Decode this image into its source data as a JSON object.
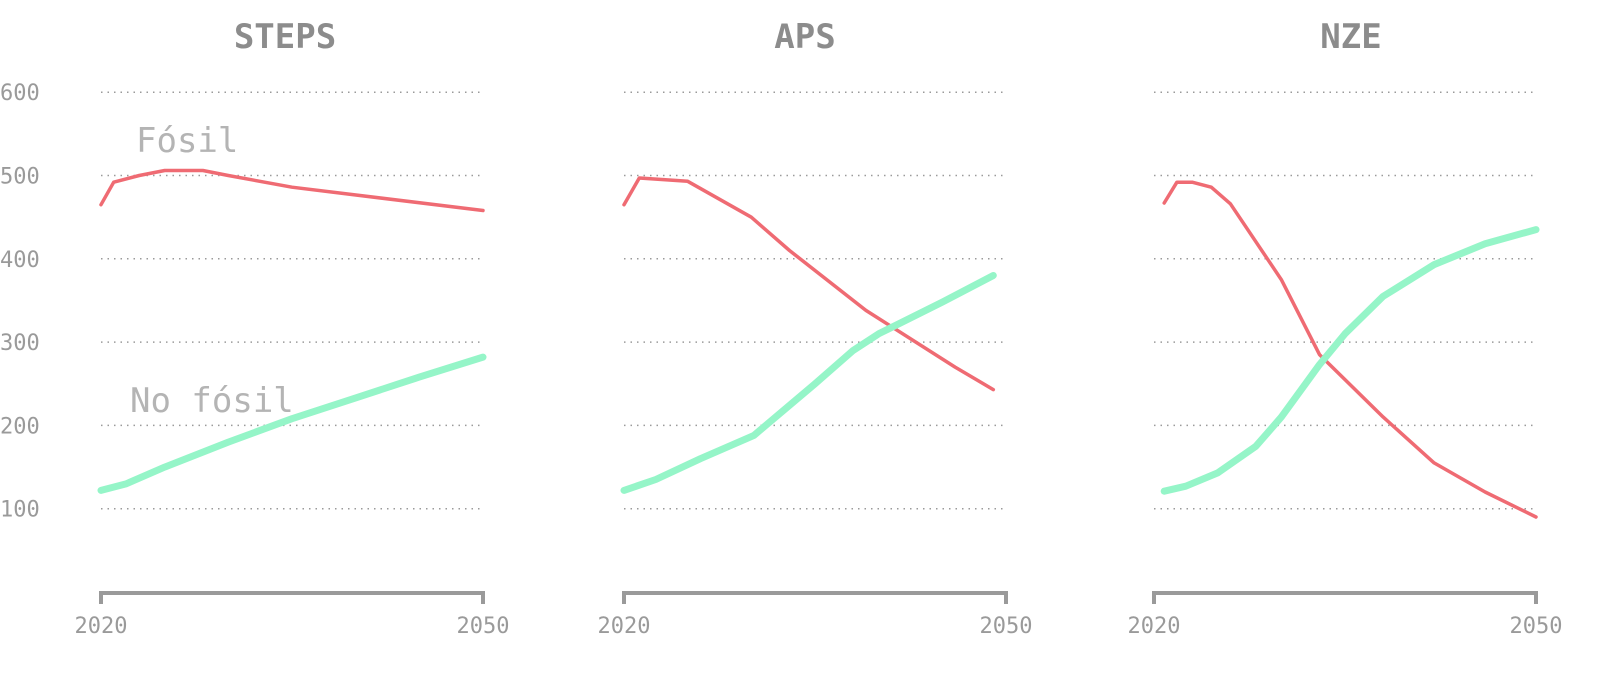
{
  "chart_data": [
    {
      "type": "line",
      "title": "STEPS",
      "x_ticks": [
        "2020",
        "2050"
      ],
      "y_ticks": [
        "100",
        "200",
        "300",
        "400",
        "500",
        "600"
      ],
      "xlim": [
        2020,
        2050
      ],
      "ylim": [
        0,
        600
      ],
      "grid": true,
      "series": [
        {
          "name": "Fósil",
          "color": "#ef6b73",
          "x": [
            2020,
            2021,
            2023,
            2025,
            2028,
            2030,
            2035,
            2050
          ],
          "y": [
            465,
            492,
            500,
            506,
            506,
            500,
            486,
            458
          ]
        },
        {
          "name": "No fósil",
          "color": "#95f5c8",
          "x": [
            2020,
            2022,
            2025,
            2030,
            2035,
            2040,
            2045,
            2050
          ],
          "y": [
            122,
            130,
            150,
            180,
            208,
            233,
            258,
            282
          ]
        }
      ]
    },
    {
      "type": "line",
      "title": "APS",
      "x_ticks": [
        "2020",
        "2050"
      ],
      "y_ticks": [
        "100",
        "200",
        "300",
        "400",
        "500",
        "600"
      ],
      "xlim": [
        2020,
        2050
      ],
      "ylim": [
        0,
        600
      ],
      "grid": true,
      "series": [
        {
          "color": "#ef6b73",
          "x": [
            2020,
            2021.2,
            2025,
            2030,
            2033,
            2039,
            2046,
            2049
          ],
          "y": [
            465,
            497,
            493,
            450,
            410,
            338,
            270,
            243
          ]
        },
        {
          "color": "#95f5c8",
          "x": [
            2020,
            2022.5,
            2026,
            2030.2,
            2035,
            2038,
            2040,
            2045,
            2049
          ],
          "y": [
            122,
            135,
            160,
            188,
            250,
            290,
            310,
            348,
            380
          ]
        }
      ]
    },
    {
      "type": "line",
      "title": "NZE",
      "x_ticks": [
        "2020",
        "2050"
      ],
      "y_ticks": [
        "100",
        "200",
        "300",
        "400",
        "500",
        "600"
      ],
      "xlim": [
        2020,
        2050
      ],
      "ylim": [
        0,
        600
      ],
      "grid": true,
      "series": [
        {
          "color": "#ef6b73",
          "x": [
            2020.8,
            2021.8,
            2023,
            2024.5,
            2026,
            2030,
            2033,
            2038,
            2042,
            2046,
            2050
          ],
          "y": [
            467,
            492,
            492,
            486,
            466,
            375,
            285,
            210,
            155,
            120,
            90
          ]
        },
        {
          "color": "#95f5c8",
          "x": [
            2020.8,
            2022.5,
            2025,
            2028,
            2030,
            2033,
            2035,
            2038,
            2042,
            2046,
            2050
          ],
          "y": [
            121,
            127,
            143,
            175,
            210,
            273,
            310,
            355,
            393,
            418,
            435
          ]
        }
      ]
    }
  ]
}
